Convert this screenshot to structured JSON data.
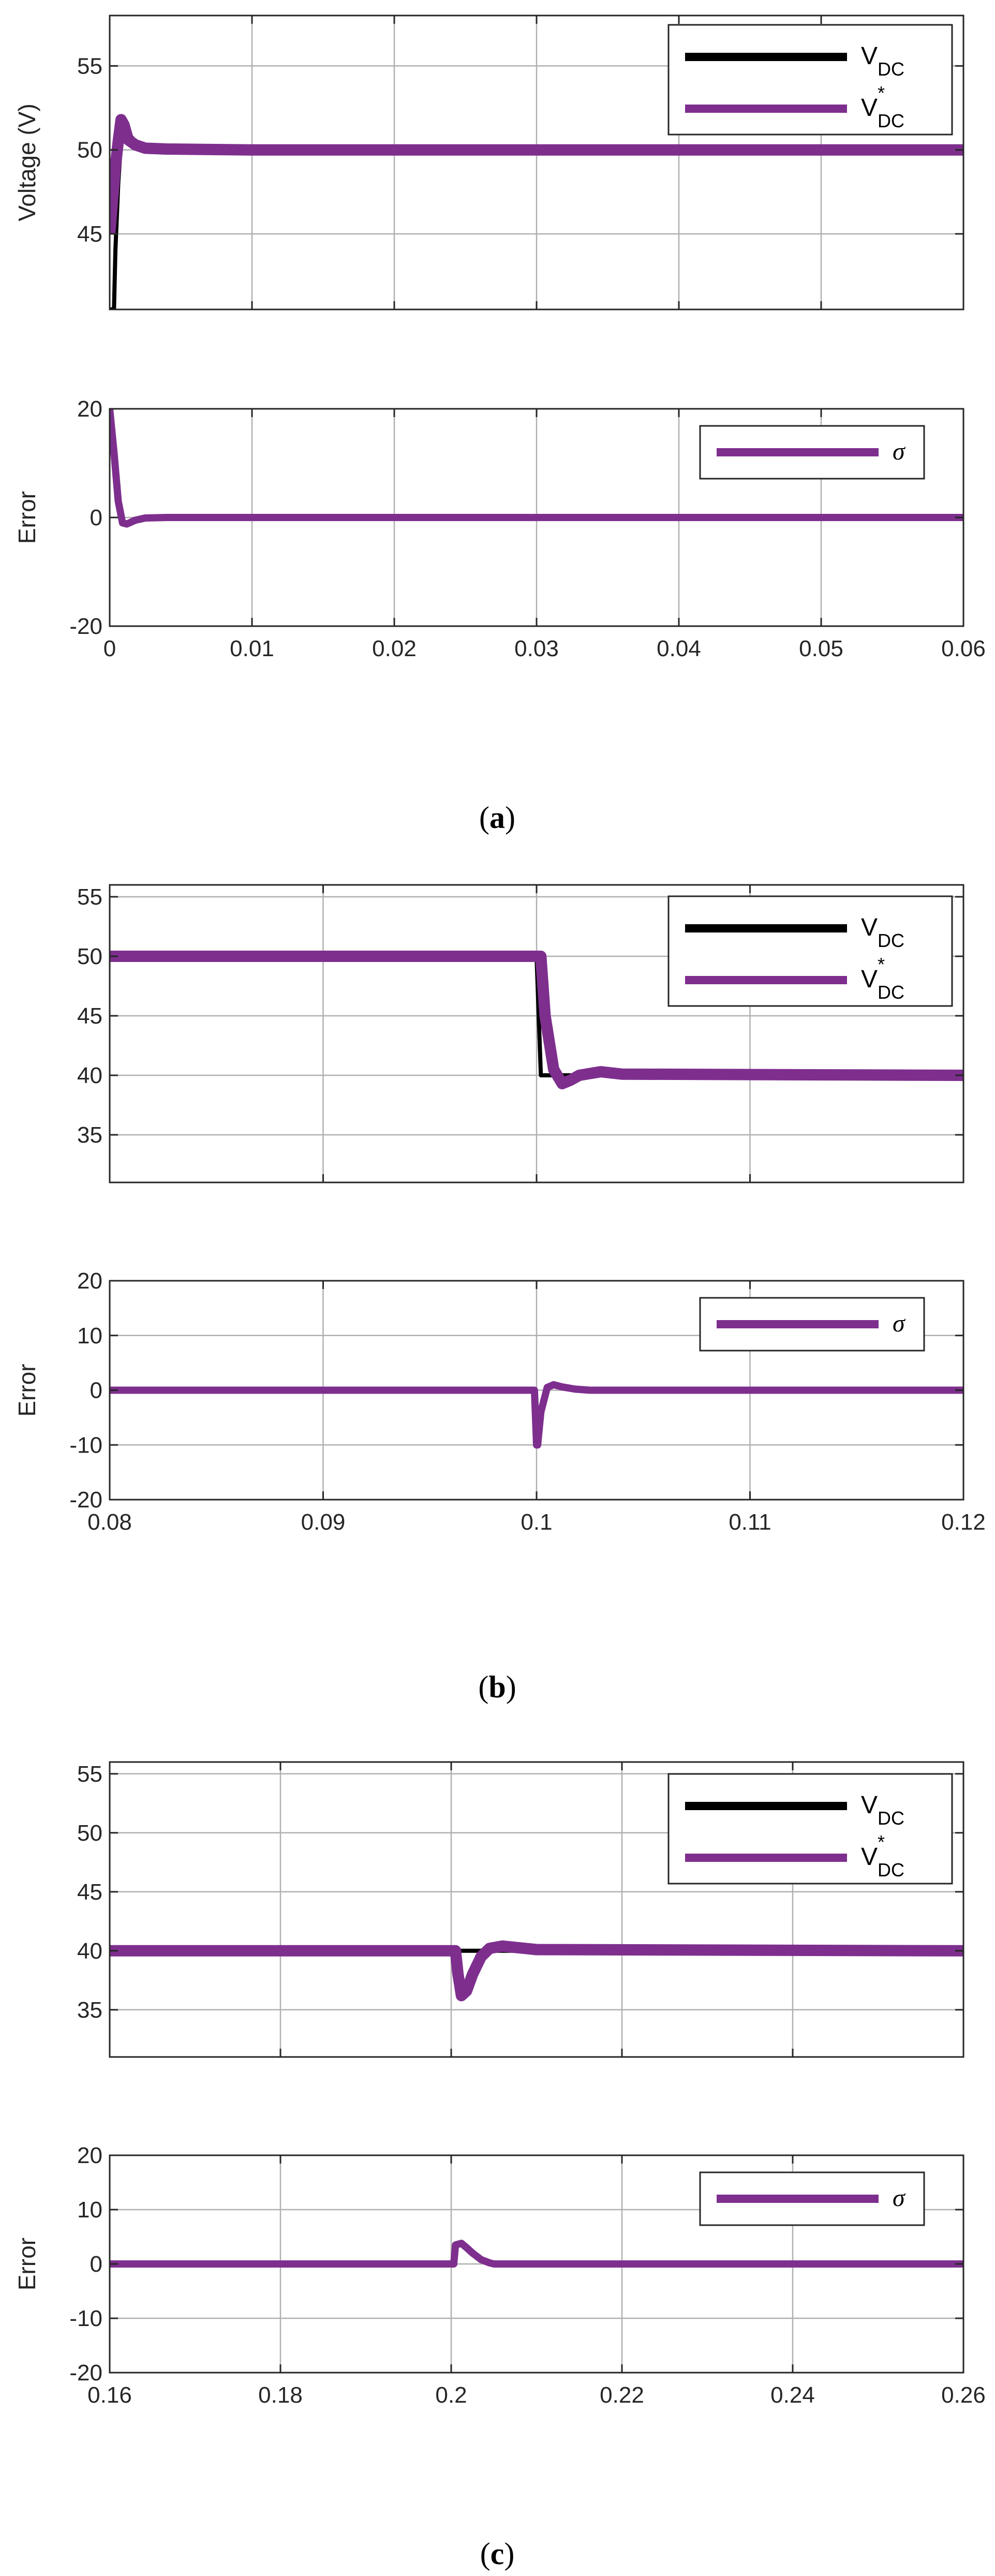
{
  "figure": {
    "captions": [
      "(a)",
      "(b)",
      "(c)"
    ],
    "caption_letters": [
      "a",
      "b",
      "c"
    ]
  },
  "colors": {
    "vdc": "#000000",
    "vdc_ref": "#7e2f8e",
    "sigma": "#7e2f8e",
    "grid": "#b0b0b0",
    "axes": "#262626"
  },
  "legend": {
    "vdc_main": "V",
    "vdc_sub": "DC",
    "ref_main": "V",
    "ref_sup": "*",
    "ref_sub": "DC",
    "sigma": "σ"
  },
  "chart_data": [
    {
      "id": "a-voltage",
      "type": "line",
      "panel": "(a)",
      "xlabel": "",
      "ylabel": "Voltage (V)",
      "xlim": [
        0,
        0.06
      ],
      "ylim": [
        40.5,
        58
      ],
      "xticks": [
        0,
        0.01,
        0.02,
        0.03,
        0.04,
        0.05,
        0.06
      ],
      "yticks": [
        45,
        50,
        55
      ],
      "ytick_labels": [
        "45",
        "50",
        "55"
      ],
      "show_xtick_labels": false,
      "grid": true,
      "legend": "top-right",
      "series": [
        {
          "name": "V_DC",
          "color": "#000000",
          "width": 8,
          "x": [
            0,
            0.00015,
            0.0003,
            0.0004,
            0.0006,
            0.0008,
            0.001,
            0.0015,
            0.002,
            0.004,
            0.01,
            0.03,
            0.06
          ],
          "y": [
            40.5,
            40.5,
            40.5,
            44,
            48,
            50.5,
            51.5,
            50.8,
            50.3,
            50.1,
            50.05,
            50.0,
            50.0
          ]
        },
        {
          "name": "V*_DC",
          "color": "#7e2f8e",
          "width": 22,
          "x": [
            0,
            0.0002,
            0.0004,
            0.0006,
            0.0008,
            0.001,
            0.0013,
            0.0018,
            0.0025,
            0.004,
            0.01,
            0.03,
            0.06
          ],
          "y": [
            45,
            47,
            49,
            50.5,
            51.8,
            51.5,
            50.6,
            50.3,
            50.1,
            50.05,
            50.0,
            50.0,
            50.0
          ]
        }
      ]
    },
    {
      "id": "a-error",
      "type": "line",
      "panel": "(a)",
      "xlabel": "",
      "ylabel": "Error",
      "xlim": [
        0,
        0.06
      ],
      "ylim": [
        -20,
        20
      ],
      "xticks": [
        0,
        0.01,
        0.02,
        0.03,
        0.04,
        0.05,
        0.06
      ],
      "xtick_labels": [
        "0",
        "0.01",
        "0.02",
        "0.03",
        "0.04",
        "0.05",
        "0.06"
      ],
      "yticks": [
        -20,
        0,
        20
      ],
      "ytick_labels": [
        "-20",
        "0",
        "20"
      ],
      "show_xtick_labels": true,
      "grid": true,
      "legend": "top-right",
      "series": [
        {
          "name": "σ",
          "color": "#7e2f8e",
          "width": 14,
          "x": [
            0,
            0.0003,
            0.0006,
            0.0009,
            0.0012,
            0.0018,
            0.0025,
            0.004,
            0.06
          ],
          "y": [
            20,
            12,
            3,
            -1,
            -1.2,
            -0.5,
            -0.1,
            0,
            0
          ]
        }
      ]
    },
    {
      "id": "b-voltage",
      "type": "line",
      "panel": "(b)",
      "xlabel": "",
      "ylabel": "",
      "xlim": [
        0.08,
        0.12
      ],
      "ylim": [
        31,
        56
      ],
      "xticks": [
        0.08,
        0.09,
        0.1,
        0.11,
        0.12
      ],
      "yticks": [
        35,
        40,
        45,
        50,
        55
      ],
      "ytick_labels": [
        "35",
        "40",
        "45",
        "50",
        "55"
      ],
      "show_xtick_labels": false,
      "grid": true,
      "legend": "top-right",
      "series": [
        {
          "name": "V_DC",
          "color": "#000000",
          "width": 8,
          "x": [
            0.08,
            0.1,
            0.1002,
            0.1005,
            0.12
          ],
          "y": [
            50,
            50,
            40,
            40,
            40
          ]
        },
        {
          "name": "V*_DC",
          "color": "#7e2f8e",
          "width": 22,
          "x": [
            0.08,
            0.1002,
            0.1004,
            0.1008,
            0.1012,
            0.1016,
            0.102,
            0.103,
            0.104,
            0.12
          ],
          "y": [
            50,
            50,
            45,
            40.5,
            39.3,
            39.6,
            40,
            40.3,
            40.1,
            40
          ]
        }
      ]
    },
    {
      "id": "b-error",
      "type": "line",
      "panel": "(b)",
      "xlabel": "",
      "ylabel": "Error",
      "xlim": [
        0.08,
        0.12
      ],
      "ylim": [
        -20,
        20
      ],
      "xticks": [
        0.08,
        0.09,
        0.1,
        0.11,
        0.12
      ],
      "xtick_labels": [
        "0.08",
        "0.09",
        "0.1",
        "0.11",
        "0.12"
      ],
      "yticks": [
        -20,
        -10,
        0,
        10,
        20
      ],
      "ytick_labels": [
        "-20",
        "-10",
        "0",
        "10",
        "20"
      ],
      "show_xtick_labels": true,
      "grid": true,
      "legend": "top-right",
      "series": [
        {
          "name": "σ",
          "color": "#7e2f8e",
          "width": 14,
          "x": [
            0.08,
            0.0999,
            0.1,
            0.10005,
            0.1002,
            0.1005,
            0.1008,
            0.1012,
            0.1018,
            0.1025,
            0.12
          ],
          "y": [
            0,
            0,
            -10,
            -10,
            -4,
            0.5,
            1.0,
            0.6,
            0.2,
            0,
            0
          ]
        }
      ]
    },
    {
      "id": "c-voltage",
      "type": "line",
      "panel": "(c)",
      "xlabel": "",
      "ylabel": "",
      "xlim": [
        0.16,
        0.26
      ],
      "ylim": [
        31,
        56
      ],
      "xticks": [
        0.16,
        0.18,
        0.2,
        0.22,
        0.24,
        0.26
      ],
      "yticks": [
        35,
        40,
        45,
        50,
        55
      ],
      "ytick_labels": [
        "35",
        "40",
        "45",
        "50",
        "55"
      ],
      "show_xtick_labels": false,
      "grid": true,
      "legend": "top-right",
      "series": [
        {
          "name": "V_DC",
          "color": "#000000",
          "width": 8,
          "x": [
            0.16,
            0.2,
            0.202,
            0.205,
            0.26
          ],
          "y": [
            40,
            40,
            40,
            40,
            40
          ]
        },
        {
          "name": "V*_DC",
          "color": "#7e2f8e",
          "width": 22,
          "x": [
            0.16,
            0.2005,
            0.2008,
            0.2012,
            0.2018,
            0.2025,
            0.2035,
            0.2045,
            0.206,
            0.21,
            0.26
          ],
          "y": [
            40,
            40,
            38,
            36.2,
            36.6,
            38,
            39.5,
            40.2,
            40.4,
            40.1,
            40
          ]
        }
      ]
    },
    {
      "id": "c-error",
      "type": "line",
      "panel": "(c)",
      "xlabel": "",
      "ylabel": "Error",
      "xlim": [
        0.16,
        0.26
      ],
      "ylim": [
        -20,
        20
      ],
      "xticks": [
        0.16,
        0.18,
        0.2,
        0.22,
        0.24,
        0.26
      ],
      "xtick_labels": [
        "0.16",
        "0.18",
        "0.2",
        "0.22",
        "0.24",
        "0.26"
      ],
      "yticks": [
        -20,
        -10,
        0,
        10,
        20
      ],
      "ytick_labels": [
        "-20",
        "-10",
        "0",
        "10",
        "20"
      ],
      "show_xtick_labels": true,
      "grid": true,
      "legend": "top-right",
      "series": [
        {
          "name": "σ",
          "color": "#7e2f8e",
          "width": 14,
          "x": [
            0.16,
            0.2003,
            0.2005,
            0.2012,
            0.2018,
            0.2025,
            0.2035,
            0.2045,
            0.205,
            0.26
          ],
          "y": [
            0,
            0,
            3.5,
            3.8,
            3.0,
            2.0,
            0.8,
            0.2,
            0,
            0
          ]
        }
      ]
    }
  ]
}
